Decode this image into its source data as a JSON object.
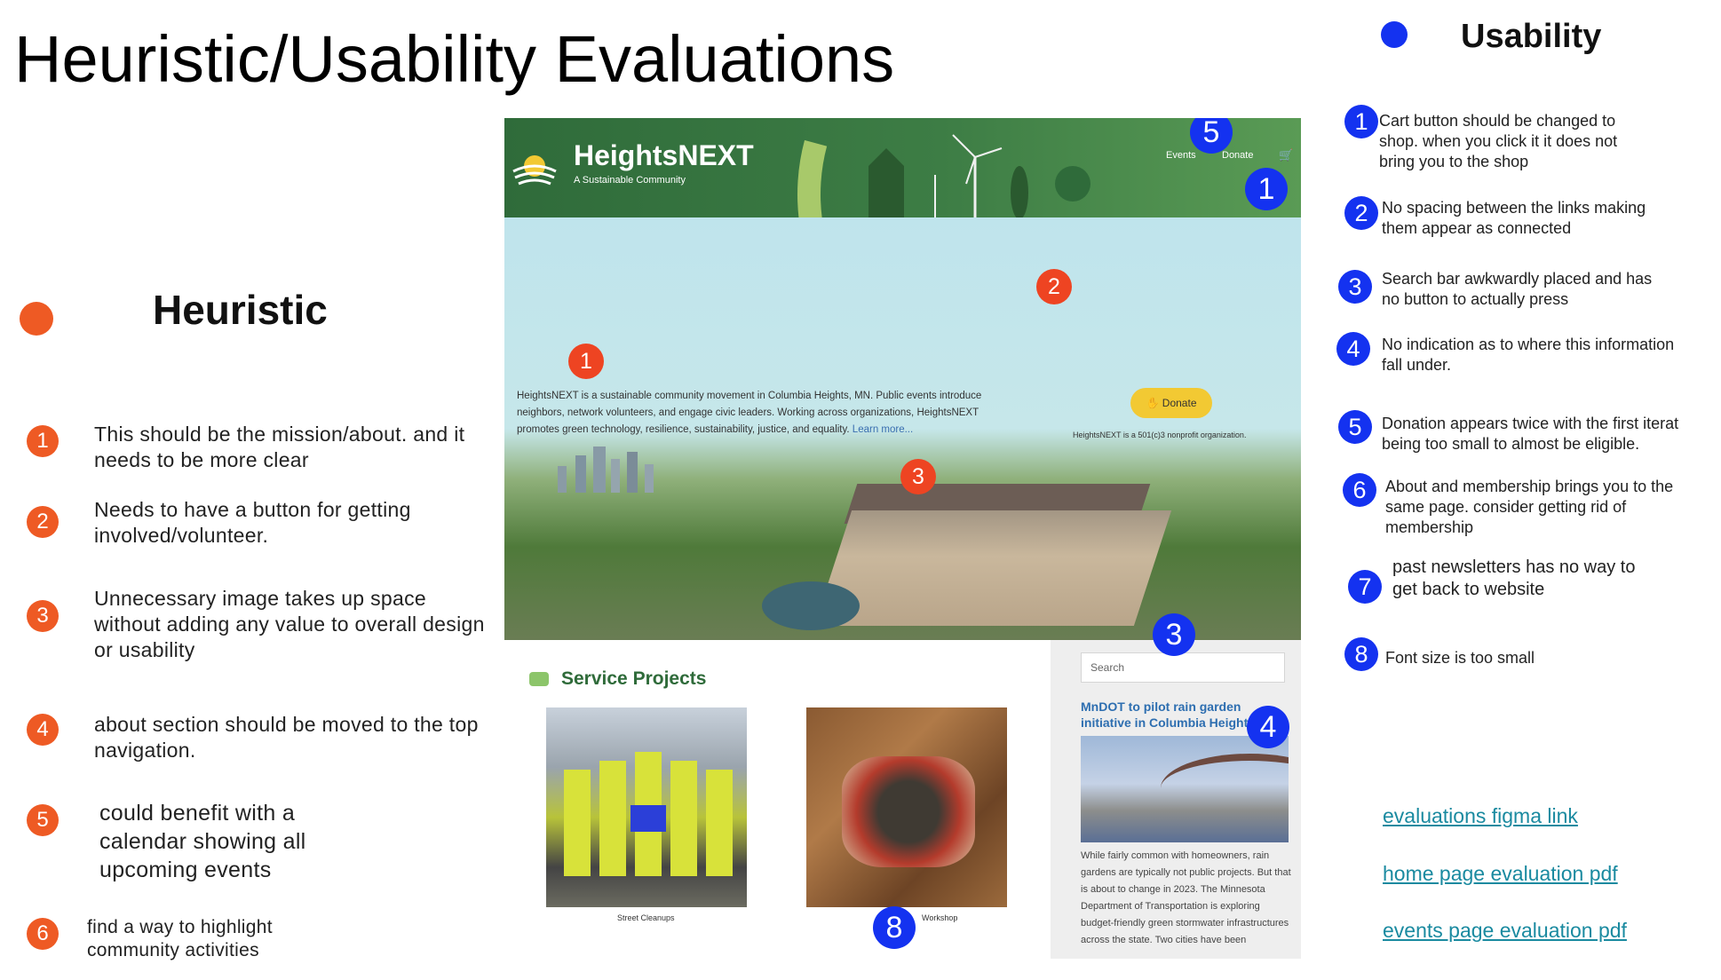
{
  "page": {
    "title": "Heuristic/Usability Evaluations"
  },
  "heuristic": {
    "title": "Heuristic",
    "color": "#ee5a24",
    "items": [
      {
        "num": "1",
        "text": "This should be the mission/about. and it needs to be more clear"
      },
      {
        "num": "2",
        "text": "Needs to have a button for getting involved/volunteer."
      },
      {
        "num": "3",
        "text": "Unnecessary image takes up space without adding any value to overall design or usability"
      },
      {
        "num": "4",
        "text": "about section should be moved to the top navigation."
      },
      {
        "num": "5",
        "text": "could benefit with a calendar showing all upcoming events"
      },
      {
        "num": "6",
        "text": "find a way to highlight community activities"
      }
    ]
  },
  "usability": {
    "title": "Usability",
    "color": "#1432f0",
    "items": [
      {
        "num": "1",
        "text": "Cart button should be changed to\nshop. when you click it it does not\nbring you to the shop"
      },
      {
        "num": "2",
        "text": "No spacing between the links making\n them appear as connected"
      },
      {
        "num": "3",
        "text": "Search bar awkwardly placed and has\n no button to actually press"
      },
      {
        "num": "4",
        "text": "No indication as to where this information\n fall under."
      },
      {
        "num": "5",
        "text": "Donation appears twice with the first iterat\nbeing too small to almost be eligible."
      },
      {
        "num": "6",
        "text": "About and membership brings you to the\nsame page. consider getting rid of\nmembership"
      },
      {
        "num": "7",
        "text": "past newsletters has no way to\nget back to website"
      },
      {
        "num": "8",
        "text": "Font size is too small"
      }
    ]
  },
  "links": [
    "evaluations figma link",
    "home page evaluation pdf",
    "events page evaluation pdf"
  ],
  "screenshot": {
    "brand": "HeightsNEXT",
    "tagline": "A Sustainable Community",
    "nav_events": "Events",
    "nav_donate": "Donate",
    "hero_text": "HeightsNEXT is a sustainable community movement in Columbia Heights, MN. Public events introduce neighbors, network volunteers, and engage civic leaders. Working across organizations, HeightsNEXT promotes green technology, resilience, sustainability, justice, and equality.",
    "hero_more": "Learn more...",
    "donate_label": "Donate",
    "nonprofit_note": "HeightsNEXT is a 501(c)3 nonprofit organization.",
    "search_placeholder": "Search",
    "section_title": "Service Projects",
    "caption_1": "Street Cleanups",
    "caption_2": "Workshop",
    "news_title": "MnDOT to pilot rain garden initiative in Columbia Heights",
    "news_body": "While fairly common with homeowners, rain gardens are typically not public projects. But that is about to change in 2023. The Minnesota Department of Transportation is exploring budget-friendly green stormwater infrastructures across the state. Two cities have been"
  }
}
